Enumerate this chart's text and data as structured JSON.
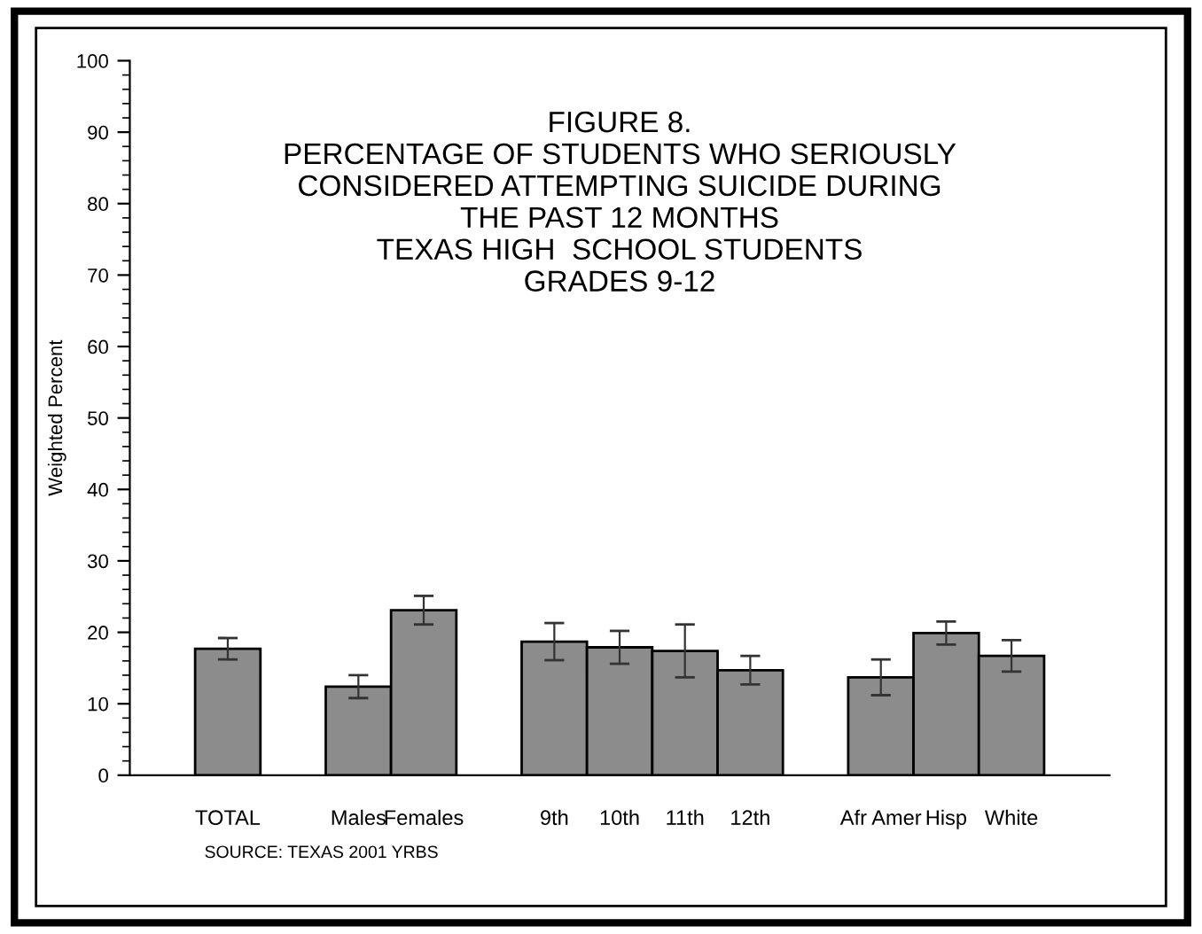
{
  "chart_data": {
    "type": "bar",
    "title": "FIGURE 8.\nPERCENTAGE OF STUDENTS WHO SERIOUSLY\nCONSIDERED ATTEMPTING SUICIDE DURING\nTHE PAST 12 MONTHS\nTEXAS HIGH  SCHOOL STUDENTS\nGRADES 9-12",
    "ylabel": "Weighted Percent",
    "categories": [
      "TOTAL",
      null,
      "Males",
      "Females",
      null,
      "9th",
      "10th",
      "11th",
      "12th",
      null,
      "Afr Amer",
      "Hisp",
      "White"
    ],
    "values": [
      17.7,
      null,
      12.4,
      23.1,
      null,
      18.7,
      17.9,
      17.4,
      14.7,
      null,
      13.7,
      19.9,
      16.7
    ],
    "errors": [
      1.5,
      null,
      1.6,
      2.0,
      null,
      2.6,
      2.3,
      3.7,
      2.0,
      null,
      2.5,
      1.6,
      2.2
    ],
    "color": "#8c8c8c",
    "ylim": [
      0,
      100
    ],
    "yticks": [
      0,
      10,
      20,
      30,
      40,
      50,
      60,
      70,
      80,
      90,
      100
    ],
    "annotations": [
      "SOURCE: TEXAS 2001 YRBS"
    ]
  }
}
